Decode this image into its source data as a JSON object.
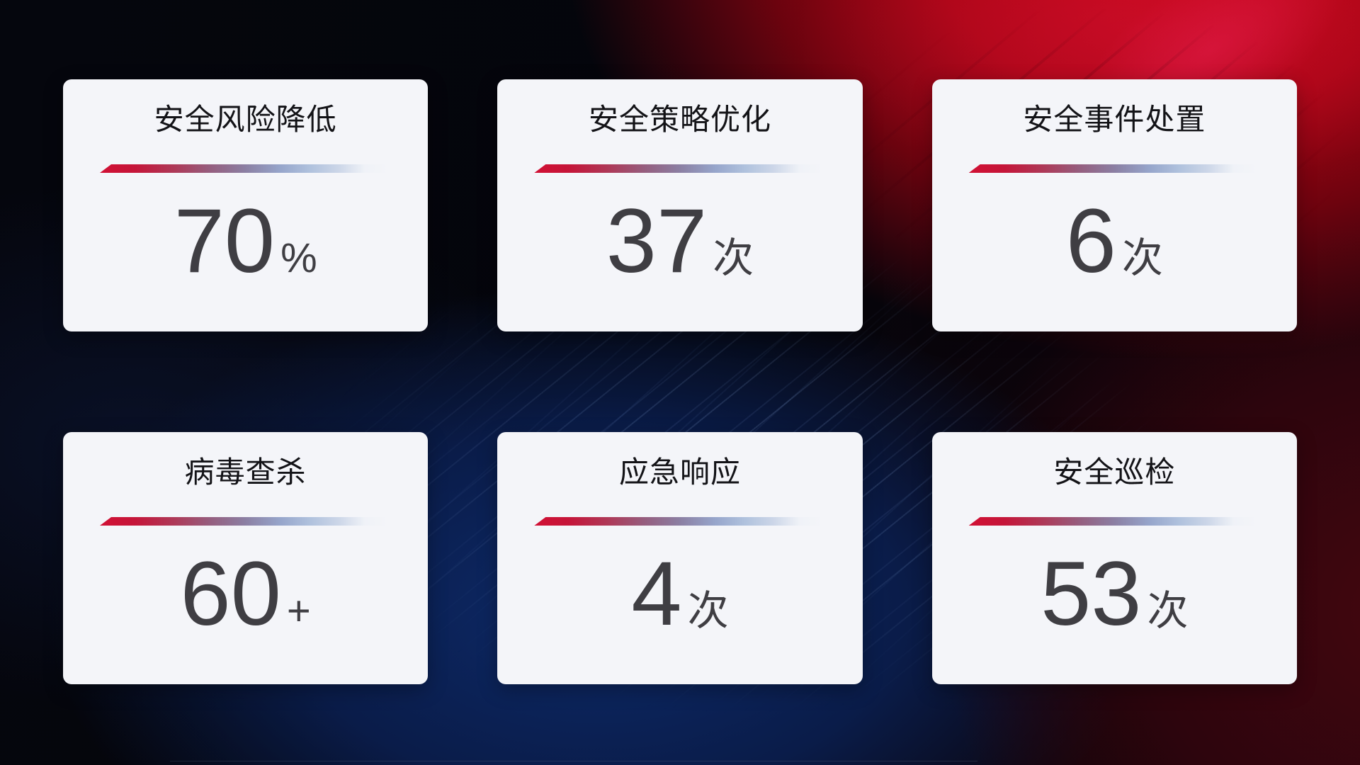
{
  "page": {
    "description": "security operations KPI dashboard overlay",
    "background": {
      "base_dark": "#05060d",
      "red_glow": "#c90717",
      "maroon_corner": "#2d050d",
      "blue_glow": "#0d2a69"
    }
  },
  "theme": {
    "card_bg": "#f4f5f9",
    "title_color": "#131317",
    "value_color": "#3f3e43",
    "divider_start": "#d11034",
    "divider_mid": "#8b7fa3",
    "divider_end": "#ccd6e8"
  },
  "cards": [
    {
      "title": "安全风险降低",
      "value": "70",
      "unit": "%"
    },
    {
      "title": "安全策略优化",
      "value": "37",
      "unit": "次"
    },
    {
      "title": "安全事件处置",
      "value": "6",
      "unit": "次"
    },
    {
      "title": "病毒查杀",
      "value": "60",
      "unit": "+"
    },
    {
      "title": "应急响应",
      "value": "4",
      "unit": "次"
    },
    {
      "title": "安全巡检",
      "value": "53",
      "unit": "次"
    }
  ]
}
